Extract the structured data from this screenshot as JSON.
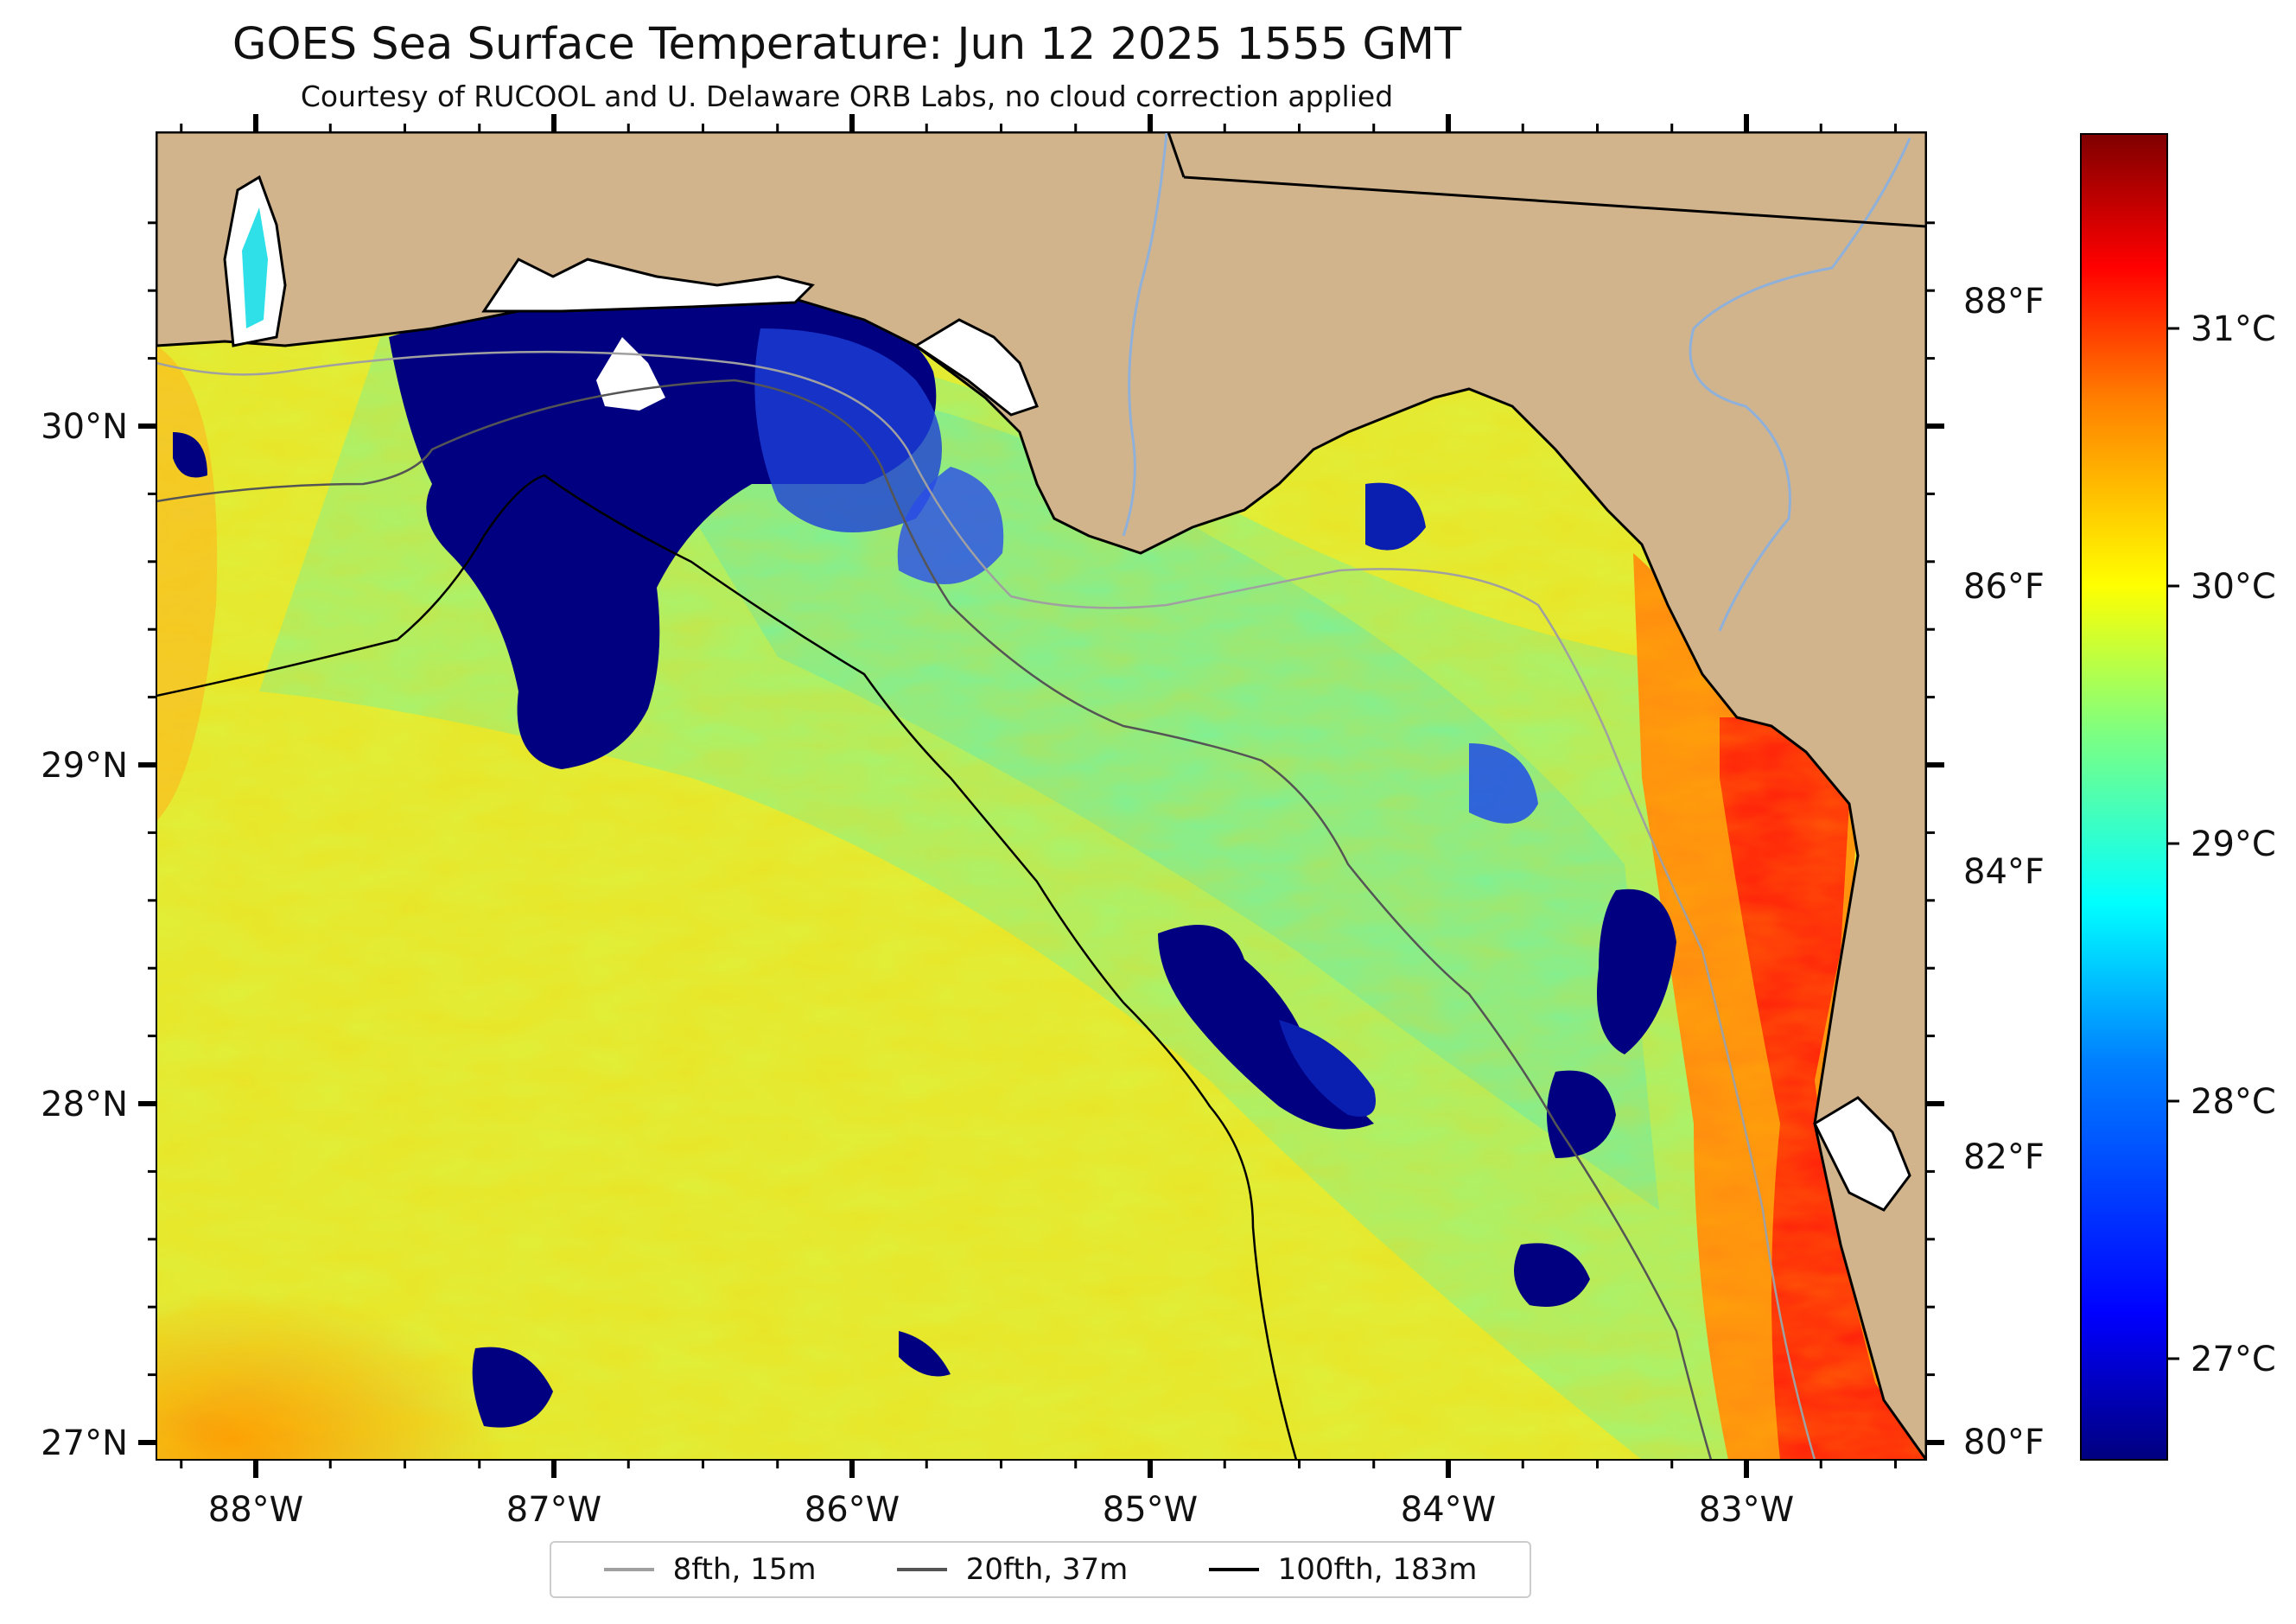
{
  "title": "GOES Sea Surface Temperature: Jun 12 2025 1555 GMT",
  "subtitle": "Courtesy of RUCOOL and U. Delaware ORB Labs, no cloud correction applied",
  "map": {
    "lon_range": [
      -88.33,
      -82.39
    ],
    "lat_range": [
      26.93,
      30.84
    ],
    "colormap": "jet",
    "land_color": "#d2b48c",
    "no_data_color": "#ffffff",
    "x_ticks": [
      "88°W",
      "87°W",
      "86°W",
      "85°W",
      "84°W",
      "83°W"
    ],
    "y_ticks": [
      "30°N",
      "29°N",
      "28°N",
      "27°N"
    ]
  },
  "colorbar": {
    "celsius_ticks": [
      "31°C",
      "30°C",
      "29°C",
      "28°C",
      "27°C"
    ],
    "fahrenheit_ticks": [
      "88°F",
      "86°F",
      "84°F",
      "82°F",
      "80°F"
    ],
    "colors": [
      "#00007f",
      "#0000ff",
      "#007fff",
      "#00ffff",
      "#7fff7f",
      "#ffff00",
      "#ff7f00",
      "#ff0000",
      "#7f0000"
    ]
  },
  "legend": [
    {
      "label": "8fth, 15m",
      "color": "#a0a0a0"
    },
    {
      "label": "20fth, 37m",
      "color": "#555555"
    },
    {
      "label": "100fth, 183m",
      "color": "#000000"
    }
  ]
}
